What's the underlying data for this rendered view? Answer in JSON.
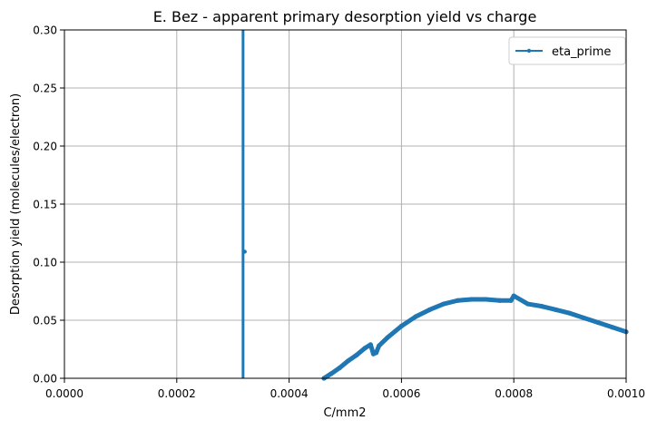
{
  "chart_data": {
    "type": "line",
    "title": "E. Bez - apparent primary desorption yield vs charge",
    "xlabel": "C/mm2",
    "ylabel": "Desorption yield (molecules/electron)",
    "xlim": [
      0,
      0.001
    ],
    "ylim": [
      0,
      0.3
    ],
    "x_ticks": [
      "0.0000",
      "0.0002",
      "0.0004",
      "0.0006",
      "0.0008",
      "0.0010"
    ],
    "y_ticks": [
      "0.00",
      "0.05",
      "0.10",
      "0.15",
      "0.20",
      "0.25",
      "0.30"
    ],
    "grid": true,
    "legend_position": "top-right",
    "colors": {
      "series": "#1f77b4",
      "grid": "#b0b0b0"
    },
    "series": [
      {
        "name": "eta_prime",
        "spike": {
          "x": 0.000318,
          "y_top": 0.3,
          "outlier": [
            0.000321,
            0.109
          ]
        },
        "x": [
          0.000462,
          0.000475,
          0.00049,
          0.000505,
          0.00052,
          0.000535,
          0.000545,
          0.00055,
          0.000555,
          0.00056,
          0.000575,
          0.0006,
          0.000625,
          0.00065,
          0.000675,
          0.0007,
          0.000725,
          0.00075,
          0.000775,
          0.000795,
          0.0008,
          0.000825,
          0.00085,
          0.000875,
          0.0009,
          0.000925,
          0.00095,
          0.000975,
          0.001
        ],
        "y": [
          0.0,
          0.004,
          0.009,
          0.015,
          0.02,
          0.026,
          0.029,
          0.021,
          0.022,
          0.028,
          0.035,
          0.045,
          0.053,
          0.059,
          0.064,
          0.067,
          0.068,
          0.068,
          0.067,
          0.067,
          0.071,
          0.064,
          0.062,
          0.059,
          0.056,
          0.052,
          0.048,
          0.044,
          0.04
        ]
      }
    ]
  }
}
